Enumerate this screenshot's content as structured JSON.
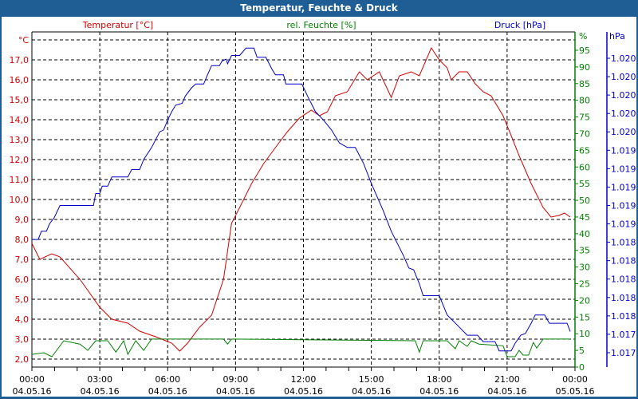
{
  "title": "Temperatur, Feuchte & Druck",
  "chart_data": {
    "type": "line",
    "title": "Temperatur, Feuchte & Druck",
    "x_unit": "hours since 04.05.16 00:00",
    "xlim": [
      0,
      24
    ],
    "x_ticks": [
      {
        "time": "00:00",
        "date": "04.05.16"
      },
      {
        "time": "03:00",
        "date": "04.05.16"
      },
      {
        "time": "06:00",
        "date": "04.05.16"
      },
      {
        "time": "09:00",
        "date": "04.05.16"
      },
      {
        "time": "12:00",
        "date": "04.05.16"
      },
      {
        "time": "15:00",
        "date": "04.05.16"
      },
      {
        "time": "18:00",
        "date": "04.05.16"
      },
      {
        "time": "21:00",
        "date": "04.05.16"
      },
      {
        "time": "00:00",
        "date": "05.05.16"
      }
    ],
    "axes": {
      "temperature": {
        "legend": "Temperatur [°C]",
        "unit": "°C",
        "ylim": [
          1.6,
          18.4
        ],
        "ticks": [
          "2,0",
          "3,0",
          "4,0",
          "5,0",
          "6,0",
          "7,0",
          "8,0",
          "9,0",
          "10,0",
          "11,0",
          "12,0",
          "13,0",
          "14,0",
          "15,0",
          "16,0",
          "17,0"
        ],
        "color": "#d40000"
      },
      "humidity": {
        "legend": "rel. Feuchte [%]",
        "unit": "%",
        "ylim": [
          0,
          100
        ],
        "ticks": [
          "0",
          "5",
          "10",
          "15",
          "20",
          "25",
          "30",
          "35",
          "40",
          "45",
          "50",
          "55",
          "60",
          "65",
          "70",
          "75",
          "80",
          "85",
          "90",
          "95"
        ],
        "color": "#008000"
      },
      "pressure": {
        "legend": "Druck [hPa]",
        "unit": "hPa",
        "ylim": [
          1017.0,
          1021.0
        ],
        "ticks": [
          "1.020",
          "1.020",
          "1.020",
          "1.020",
          "1.020",
          "1.019",
          "1.019",
          "1.019",
          "1.019",
          "1.019",
          "1.018",
          "1.018",
          "1.018",
          "1.018",
          "1.018",
          "1.017",
          "1.017"
        ],
        "color": "#0000c8"
      }
    },
    "series": [
      {
        "name": "Temperatur [°C]",
        "axis": "temperature",
        "points": [
          [
            0,
            7.8
          ],
          [
            0.35,
            7.0
          ],
          [
            0.88,
            7.28
          ],
          [
            1.24,
            7.12
          ],
          [
            2.12,
            6.0
          ],
          [
            3.0,
            4.6
          ],
          [
            3.53,
            4.0
          ],
          [
            4.24,
            3.8
          ],
          [
            4.76,
            3.4
          ],
          [
            5.47,
            3.12
          ],
          [
            6.18,
            2.8
          ],
          [
            6.53,
            2.4
          ],
          [
            6.88,
            2.8
          ],
          [
            7.41,
            3.6
          ],
          [
            7.94,
            4.2
          ],
          [
            8.47,
            6.0
          ],
          [
            8.82,
            8.8
          ],
          [
            9.18,
            9.6
          ],
          [
            9.71,
            10.8
          ],
          [
            10.24,
            11.8
          ],
          [
            10.76,
            12.6
          ],
          [
            11.29,
            13.4
          ],
          [
            11.82,
            14.08
          ],
          [
            12.35,
            14.48
          ],
          [
            12.71,
            14.2
          ],
          [
            13.06,
            14.4
          ],
          [
            13.41,
            15.2
          ],
          [
            13.94,
            15.4
          ],
          [
            14.47,
            16.4
          ],
          [
            14.82,
            16.0
          ],
          [
            15.35,
            16.4
          ],
          [
            15.88,
            15.12
          ],
          [
            16.24,
            16.2
          ],
          [
            16.76,
            16.4
          ],
          [
            17.12,
            16.2
          ],
          [
            17.65,
            17.6
          ],
          [
            18.0,
            17.0
          ],
          [
            18.35,
            16.6
          ],
          [
            18.53,
            16.0
          ],
          [
            18.88,
            16.4
          ],
          [
            19.24,
            16.4
          ],
          [
            19.59,
            15.8
          ],
          [
            19.94,
            15.4
          ],
          [
            20.29,
            15.2
          ],
          [
            20.82,
            14.2
          ],
          [
            21.18,
            13.2
          ],
          [
            21.53,
            12.2
          ],
          [
            22.06,
            10.8
          ],
          [
            22.59,
            9.6
          ],
          [
            22.94,
            9.12
          ],
          [
            23.29,
            9.2
          ],
          [
            23.54,
            9.32
          ],
          [
            23.79,
            9.12
          ]
        ]
      },
      {
        "name": "rel. Feuchte [%]",
        "axis": "humidity",
        "points": [
          [
            0,
            3.8
          ],
          [
            0.53,
            4.3
          ],
          [
            0.88,
            3.1
          ],
          [
            1.41,
            7.9
          ],
          [
            2.12,
            6.9
          ],
          [
            2.47,
            5.0
          ],
          [
            2.82,
            7.9
          ],
          [
            3.35,
            7.9
          ],
          [
            3.71,
            4.5
          ],
          [
            4.06,
            7.9
          ],
          [
            4.24,
            3.8
          ],
          [
            4.59,
            7.9
          ],
          [
            4.94,
            5.0
          ],
          [
            5.29,
            8.4
          ],
          [
            8.47,
            8.4
          ],
          [
            8.65,
            6.9
          ],
          [
            8.82,
            8.4
          ],
          [
            16.94,
            7.9
          ],
          [
            17.12,
            4.5
          ],
          [
            17.29,
            7.9
          ],
          [
            18.35,
            7.9
          ],
          [
            18.71,
            5.5
          ],
          [
            18.88,
            7.9
          ],
          [
            19.24,
            6.2
          ],
          [
            19.41,
            7.9
          ],
          [
            19.76,
            6.9
          ],
          [
            20.82,
            6.4
          ],
          [
            21.0,
            3.1
          ],
          [
            21.35,
            3.1
          ],
          [
            21.53,
            5.0
          ],
          [
            21.71,
            3.6
          ],
          [
            21.95,
            3.6
          ],
          [
            22.16,
            7.4
          ],
          [
            22.31,
            5.7
          ],
          [
            22.59,
            8.4
          ],
          [
            23.79,
            8.4
          ]
        ]
      },
      {
        "name": "Druck [hPa]",
        "axis": "pressure",
        "points": [
          [
            0,
            1018.83
          ],
          [
            0.28,
            1018.83
          ],
          [
            0.42,
            1018.92
          ],
          [
            0.64,
            1018.92
          ],
          [
            0.78,
            1019.0
          ],
          [
            0.99,
            1019.07
          ],
          [
            1.24,
            1019.2
          ],
          [
            2.72,
            1019.2
          ],
          [
            2.82,
            1019.33
          ],
          [
            3.0,
            1019.33
          ],
          [
            3.11,
            1019.41
          ],
          [
            3.35,
            1019.41
          ],
          [
            3.53,
            1019.51
          ],
          [
            4.24,
            1019.51
          ],
          [
            4.41,
            1019.59
          ],
          [
            4.76,
            1019.59
          ],
          [
            4.94,
            1019.7
          ],
          [
            5.29,
            1019.83
          ],
          [
            5.65,
            1020.0
          ],
          [
            5.82,
            1020.02
          ],
          [
            6.0,
            1020.13
          ],
          [
            6.18,
            1020.22
          ],
          [
            6.35,
            1020.29
          ],
          [
            6.64,
            1020.31
          ],
          [
            6.78,
            1020.39
          ],
          [
            7.06,
            1020.48
          ],
          [
            7.24,
            1020.52
          ],
          [
            7.59,
            1020.52
          ],
          [
            7.76,
            1020.62
          ],
          [
            7.94,
            1020.72
          ],
          [
            8.29,
            1020.72
          ],
          [
            8.4,
            1020.77
          ],
          [
            8.58,
            1020.79
          ],
          [
            8.65,
            1020.74
          ],
          [
            8.82,
            1020.83
          ],
          [
            9.18,
            1020.83
          ],
          [
            9.46,
            1020.91
          ],
          [
            9.81,
            1020.91
          ],
          [
            9.95,
            1020.81
          ],
          [
            10.34,
            1020.81
          ],
          [
            10.59,
            1020.69
          ],
          [
            10.76,
            1020.62
          ],
          [
            11.12,
            1020.62
          ],
          [
            11.22,
            1020.52
          ],
          [
            11.93,
            1020.52
          ],
          [
            12.18,
            1020.39
          ],
          [
            12.53,
            1020.22
          ],
          [
            12.88,
            1020.13
          ],
          [
            13.24,
            1020.02
          ],
          [
            13.59,
            1019.88
          ],
          [
            13.94,
            1019.83
          ],
          [
            14.29,
            1019.83
          ],
          [
            14.65,
            1019.66
          ],
          [
            15.0,
            1019.44
          ],
          [
            15.53,
            1019.14
          ],
          [
            15.88,
            1018.92
          ],
          [
            16.41,
            1018.66
          ],
          [
            16.66,
            1018.52
          ],
          [
            16.87,
            1018.5
          ],
          [
            17.12,
            1018.35
          ],
          [
            17.29,
            1018.22
          ],
          [
            18.0,
            1018.22
          ],
          [
            18.35,
            1018.01
          ],
          [
            18.88,
            1017.88
          ],
          [
            19.24,
            1017.79
          ],
          [
            19.69,
            1017.79
          ],
          [
            19.94,
            1017.72
          ],
          [
            20.47,
            1017.72
          ],
          [
            20.65,
            1017.62
          ],
          [
            21.18,
            1017.62
          ],
          [
            21.35,
            1017.7
          ],
          [
            21.6,
            1017.79
          ],
          [
            21.81,
            1017.81
          ],
          [
            22.06,
            1017.92
          ],
          [
            22.24,
            1018.01
          ],
          [
            22.66,
            1018.01
          ],
          [
            22.87,
            1017.92
          ],
          [
            23.65,
            1017.92
          ],
          [
            23.79,
            1017.83
          ]
        ]
      }
    ],
    "grid": true
  }
}
